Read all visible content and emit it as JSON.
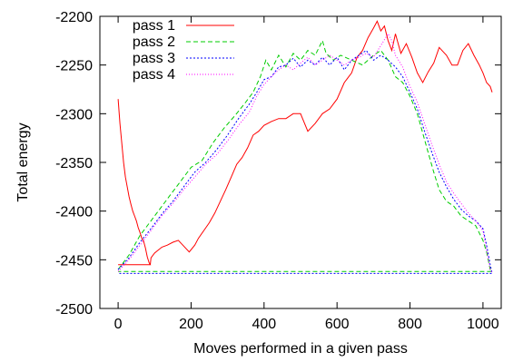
{
  "chart_data": {
    "type": "line",
    "title": "",
    "xlabel": "Moves performed in a given pass",
    "ylabel": "Total energy",
    "xlim": [
      -50,
      1050
    ],
    "ylim": [
      -2500,
      -2200
    ],
    "xticks": [
      0,
      200,
      400,
      600,
      800,
      1000
    ],
    "yticks": [
      -2500,
      -2450,
      -2400,
      -2350,
      -2300,
      -2250,
      -2200
    ],
    "xtick_labels": [
      "0",
      "200",
      "400",
      "600",
      "800",
      "1000"
    ],
    "ytick_labels": [
      "-2500",
      "-2450",
      "-2400",
      "-2350",
      "-2300",
      "-2250",
      "-2200"
    ],
    "grid": false,
    "legend_position": "top-left",
    "series": [
      {
        "name": "pass 1",
        "color": "#ff0000",
        "dash": "solid",
        "points": [
          [
            0,
            -2285
          ],
          [
            5,
            -2310
          ],
          [
            10,
            -2330
          ],
          [
            15,
            -2350
          ],
          [
            20,
            -2365
          ],
          [
            25,
            -2375
          ],
          [
            30,
            -2385
          ],
          [
            35,
            -2393
          ],
          [
            40,
            -2400
          ],
          [
            45,
            -2405
          ],
          [
            50,
            -2410
          ],
          [
            55,
            -2417
          ],
          [
            60,
            -2422
          ],
          [
            65,
            -2428
          ],
          [
            70,
            -2431
          ],
          [
            75,
            -2438
          ],
          [
            80,
            -2447
          ],
          [
            85,
            -2453
          ],
          [
            88,
            -2455
          ],
          [
            0,
            -2455
          ],
          [
            88,
            -2455
          ],
          [
            90,
            -2448
          ],
          [
            100,
            -2443
          ],
          [
            110,
            -2440
          ],
          [
            120,
            -2437
          ],
          [
            135,
            -2435
          ],
          [
            150,
            -2432
          ],
          [
            165,
            -2430
          ],
          [
            180,
            -2436
          ],
          [
            195,
            -2442
          ],
          [
            210,
            -2435
          ],
          [
            220,
            -2428
          ],
          [
            235,
            -2420
          ],
          [
            250,
            -2412
          ],
          [
            265,
            -2402
          ],
          [
            280,
            -2390
          ],
          [
            295,
            -2378
          ],
          [
            310,
            -2365
          ],
          [
            325,
            -2352
          ],
          [
            340,
            -2345
          ],
          [
            355,
            -2335
          ],
          [
            370,
            -2322
          ],
          [
            385,
            -2318
          ],
          [
            400,
            -2312
          ],
          [
            420,
            -2308
          ],
          [
            440,
            -2305
          ],
          [
            460,
            -2305
          ],
          [
            480,
            -2300
          ],
          [
            500,
            -2300
          ],
          [
            520,
            -2318
          ],
          [
            540,
            -2310
          ],
          [
            560,
            -2300
          ],
          [
            580,
            -2295
          ],
          [
            600,
            -2285
          ],
          [
            620,
            -2268
          ],
          [
            640,
            -2258
          ],
          [
            655,
            -2242
          ],
          [
            670,
            -2235
          ],
          [
            685,
            -2222
          ],
          [
            700,
            -2212
          ],
          [
            710,
            -2205
          ],
          [
            720,
            -2215
          ],
          [
            730,
            -2210
          ],
          [
            740,
            -2225
          ],
          [
            750,
            -2235
          ],
          [
            760,
            -2218
          ],
          [
            775,
            -2238
          ],
          [
            790,
            -2228
          ],
          [
            805,
            -2242
          ],
          [
            820,
            -2258
          ],
          [
            835,
            -2268
          ],
          [
            850,
            -2257
          ],
          [
            865,
            -2248
          ],
          [
            880,
            -2232
          ],
          [
            900,
            -2240
          ],
          [
            915,
            -2250
          ],
          [
            930,
            -2250
          ],
          [
            945,
            -2235
          ],
          [
            960,
            -2228
          ],
          [
            975,
            -2240
          ],
          [
            990,
            -2250
          ],
          [
            1000,
            -2258
          ],
          [
            1010,
            -2268
          ],
          [
            1020,
            -2272
          ],
          [
            1025,
            -2278
          ]
        ]
      },
      {
        "name": "pass 2",
        "color": "#00cc00",
        "dash": "5,3",
        "points": [
          [
            0,
            -2460
          ],
          [
            30,
            -2445
          ],
          [
            60,
            -2425
          ],
          [
            90,
            -2410
          ],
          [
            110,
            -2400
          ],
          [
            140,
            -2385
          ],
          [
            170,
            -2370
          ],
          [
            200,
            -2355
          ],
          [
            230,
            -2348
          ],
          [
            260,
            -2330
          ],
          [
            290,
            -2315
          ],
          [
            320,
            -2302
          ],
          [
            350,
            -2288
          ],
          [
            370,
            -2278
          ],
          [
            390,
            -2262
          ],
          [
            405,
            -2245
          ],
          [
            420,
            -2255
          ],
          [
            440,
            -2240
          ],
          [
            460,
            -2252
          ],
          [
            480,
            -2238
          ],
          [
            500,
            -2245
          ],
          [
            520,
            -2235
          ],
          [
            540,
            -2240
          ],
          [
            560,
            -2225
          ],
          [
            570,
            -2238
          ],
          [
            590,
            -2245
          ],
          [
            610,
            -2240
          ],
          [
            640,
            -2245
          ],
          [
            670,
            -2250
          ],
          [
            700,
            -2240
          ],
          [
            720,
            -2235
          ],
          [
            740,
            -2245
          ],
          [
            760,
            -2262
          ],
          [
            780,
            -2268
          ],
          [
            800,
            -2282
          ],
          [
            820,
            -2300
          ],
          [
            835,
            -2320
          ],
          [
            850,
            -2340
          ],
          [
            865,
            -2360
          ],
          [
            880,
            -2378
          ],
          [
            900,
            -2390
          ],
          [
            920,
            -2395
          ],
          [
            940,
            -2405
          ],
          [
            960,
            -2410
          ],
          [
            980,
            -2415
          ],
          [
            1000,
            -2430
          ],
          [
            1010,
            -2442
          ],
          [
            1020,
            -2460
          ],
          [
            1025,
            -2462
          ],
          [
            0,
            -2462
          ]
        ]
      },
      {
        "name": "pass 3",
        "color": "#0000ff",
        "dash": "2,2",
        "points": [
          [
            0,
            -2460
          ],
          [
            30,
            -2448
          ],
          [
            60,
            -2432
          ],
          [
            90,
            -2418
          ],
          [
            120,
            -2403
          ],
          [
            150,
            -2390
          ],
          [
            180,
            -2375
          ],
          [
            210,
            -2360
          ],
          [
            240,
            -2350
          ],
          [
            270,
            -2337
          ],
          [
            300,
            -2322
          ],
          [
            330,
            -2305
          ],
          [
            360,
            -2290
          ],
          [
            380,
            -2278
          ],
          [
            400,
            -2265
          ],
          [
            420,
            -2262
          ],
          [
            440,
            -2252
          ],
          [
            460,
            -2250
          ],
          [
            480,
            -2243
          ],
          [
            500,
            -2252
          ],
          [
            520,
            -2245
          ],
          [
            540,
            -2250
          ],
          [
            560,
            -2242
          ],
          [
            580,
            -2250
          ],
          [
            600,
            -2242
          ],
          [
            620,
            -2255
          ],
          [
            640,
            -2245
          ],
          [
            660,
            -2240
          ],
          [
            680,
            -2235
          ],
          [
            700,
            -2245
          ],
          [
            720,
            -2240
          ],
          [
            740,
            -2245
          ],
          [
            760,
            -2252
          ],
          [
            780,
            -2262
          ],
          [
            800,
            -2278
          ],
          [
            820,
            -2295
          ],
          [
            840,
            -2318
          ],
          [
            860,
            -2340
          ],
          [
            880,
            -2360
          ],
          [
            900,
            -2375
          ],
          [
            920,
            -2388
          ],
          [
            940,
            -2398
          ],
          [
            960,
            -2405
          ],
          [
            980,
            -2410
          ],
          [
            1000,
            -2418
          ],
          [
            1010,
            -2435
          ],
          [
            1020,
            -2455
          ],
          [
            1025,
            -2464
          ],
          [
            0,
            -2464
          ]
        ]
      },
      {
        "name": "pass 4",
        "color": "#ff00ff",
        "dash": "1,2",
        "points": [
          [
            0,
            -2462
          ],
          [
            30,
            -2450
          ],
          [
            60,
            -2435
          ],
          [
            90,
            -2420
          ],
          [
            120,
            -2405
          ],
          [
            150,
            -2392
          ],
          [
            180,
            -2378
          ],
          [
            210,
            -2365
          ],
          [
            240,
            -2352
          ],
          [
            270,
            -2342
          ],
          [
            300,
            -2328
          ],
          [
            330,
            -2312
          ],
          [
            360,
            -2298
          ],
          [
            380,
            -2282
          ],
          [
            400,
            -2270
          ],
          [
            420,
            -2262
          ],
          [
            440,
            -2255
          ],
          [
            460,
            -2250
          ],
          [
            480,
            -2255
          ],
          [
            500,
            -2248
          ],
          [
            520,
            -2242
          ],
          [
            540,
            -2250
          ],
          [
            560,
            -2245
          ],
          [
            580,
            -2240
          ],
          [
            600,
            -2245
          ],
          [
            620,
            -2250
          ],
          [
            640,
            -2245
          ],
          [
            660,
            -2242
          ],
          [
            680,
            -2238
          ],
          [
            700,
            -2242
          ],
          [
            720,
            -2230
          ],
          [
            740,
            -2218
          ],
          [
            750,
            -2225
          ],
          [
            760,
            -2240
          ],
          [
            780,
            -2252
          ],
          [
            800,
            -2272
          ],
          [
            820,
            -2288
          ],
          [
            840,
            -2310
          ],
          [
            860,
            -2332
          ],
          [
            880,
            -2352
          ],
          [
            900,
            -2370
          ],
          [
            920,
            -2382
          ],
          [
            940,
            -2392
          ],
          [
            960,
            -2402
          ],
          [
            980,
            -2410
          ],
          [
            1000,
            -2420
          ],
          [
            1010,
            -2440
          ],
          [
            1020,
            -2460
          ],
          [
            1025,
            -2463
          ]
        ]
      }
    ]
  }
}
